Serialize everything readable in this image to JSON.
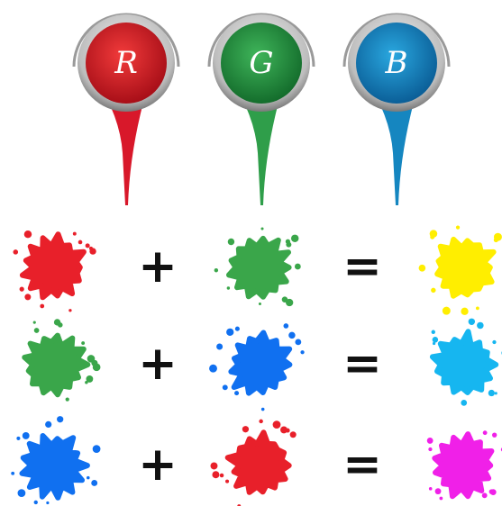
{
  "cans": [
    {
      "label": "R"
    },
    {
      "label": "G"
    },
    {
      "label": "B"
    }
  ],
  "equations": [
    {
      "plus": "+",
      "equals": "="
    },
    {
      "plus": "+",
      "equals": "="
    },
    {
      "plus": "+",
      "equals": "="
    }
  ]
}
